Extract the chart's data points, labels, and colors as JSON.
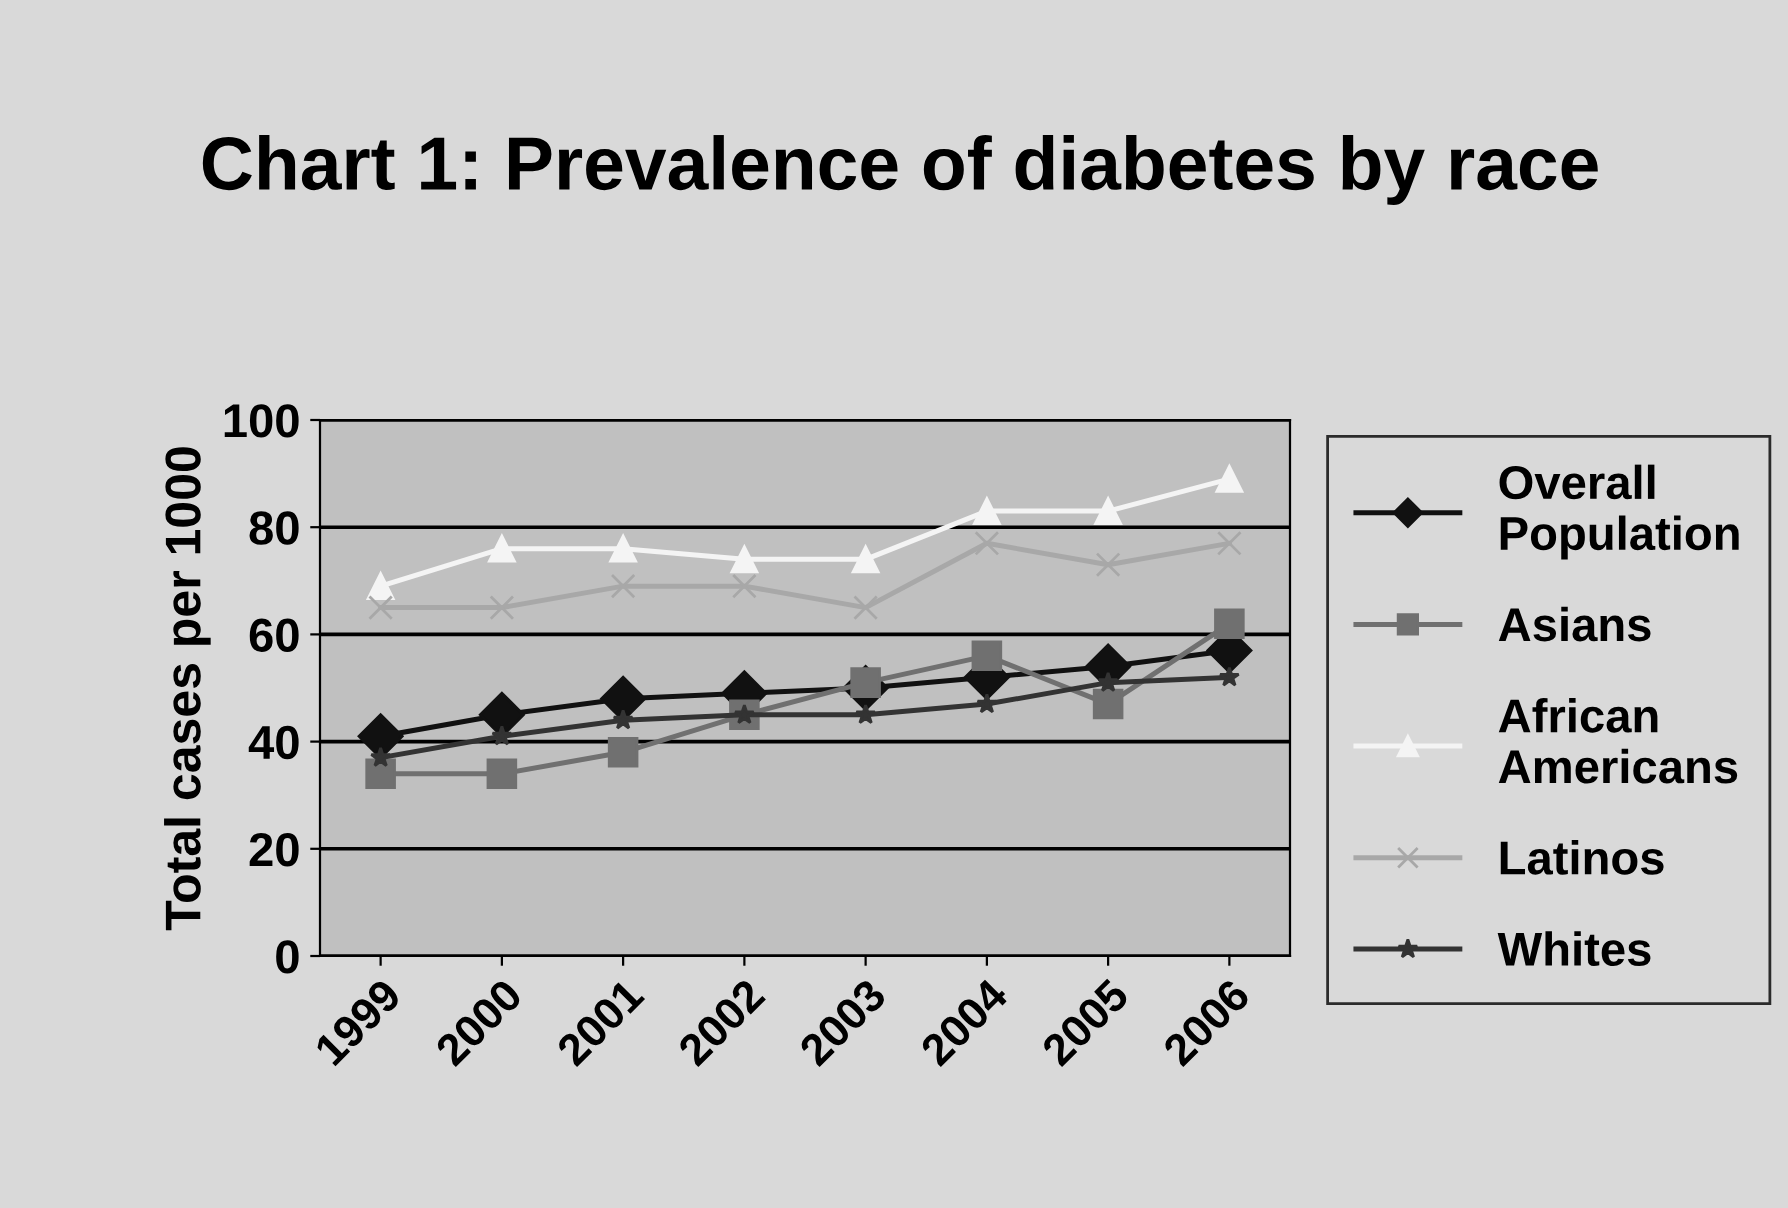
{
  "chart_data": {
    "type": "line",
    "title": "Chart 1: Prevalence of diabetes by race",
    "ylabel": "Total cases per 1000",
    "categories": [
      "1999",
      "2000",
      "2001",
      "2002",
      "2003",
      "2004",
      "2005",
      "2006"
    ],
    "series": [
      {
        "name": "Overall Population",
        "color": "#111111",
        "marker": "diamond",
        "values": [
          41,
          45,
          48,
          49,
          50,
          52,
          54,
          57
        ]
      },
      {
        "name": "Asians",
        "color": "#707070",
        "marker": "square",
        "values": [
          34,
          34,
          38,
          45,
          51,
          56,
          47,
          62
        ]
      },
      {
        "name": "African Americans",
        "color": "#f4f4f4",
        "marker": "triangle",
        "values": [
          69,
          76,
          76,
          74,
          74,
          83,
          83,
          89
        ]
      },
      {
        "name": "Latinos",
        "color": "#a8a8a8",
        "marker": "cross",
        "values": [
          65,
          65,
          69,
          69,
          65,
          77,
          73,
          77
        ]
      },
      {
        "name": "Whites",
        "color": "#333333",
        "marker": "star",
        "values": [
          37,
          41,
          44,
          45,
          45,
          47,
          51,
          52
        ]
      }
    ],
    "ylim": [
      0,
      100
    ],
    "yticks": [
      0,
      20,
      40,
      60,
      80,
      100
    ],
    "grid": "y",
    "legend": "right",
    "line_style": "solid"
  }
}
